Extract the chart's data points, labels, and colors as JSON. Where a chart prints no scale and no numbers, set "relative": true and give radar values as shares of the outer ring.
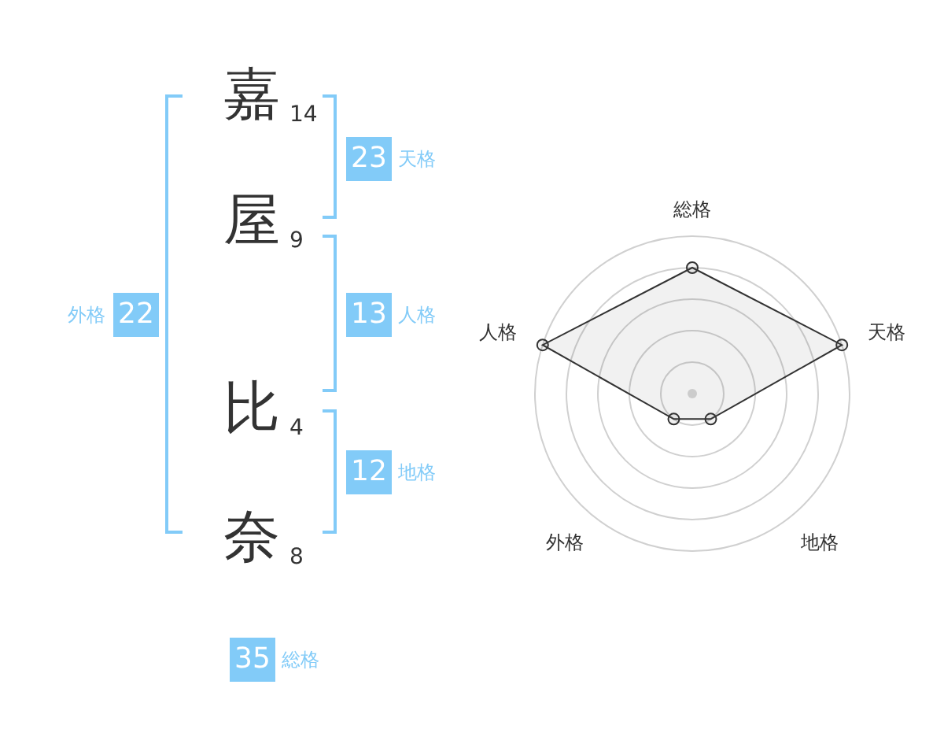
{
  "chart_data": [
    {
      "type": "other",
      "categories": [
        "嘉",
        "屋",
        "比",
        "奈"
      ],
      "values": [
        14,
        9,
        4,
        8
      ],
      "data_labels": true,
      "color": "#82cbf8",
      "annotations": [
        "23",
        "天格",
        "13",
        "人格",
        "12",
        "地格",
        "22",
        "外格",
        "35",
        "総格"
      ]
    },
    {
      "type": "radar",
      "categories": [
        "総格",
        "天格",
        "地格",
        "外格",
        "人格"
      ],
      "relative": true,
      "series": [
        {
          "color": "#333333",
          "values": [
            0.8,
            1,
            0.2,
            0.2,
            1
          ]
        }
      ],
      "grid": true,
      "marker": "circle"
    }
  ]
}
